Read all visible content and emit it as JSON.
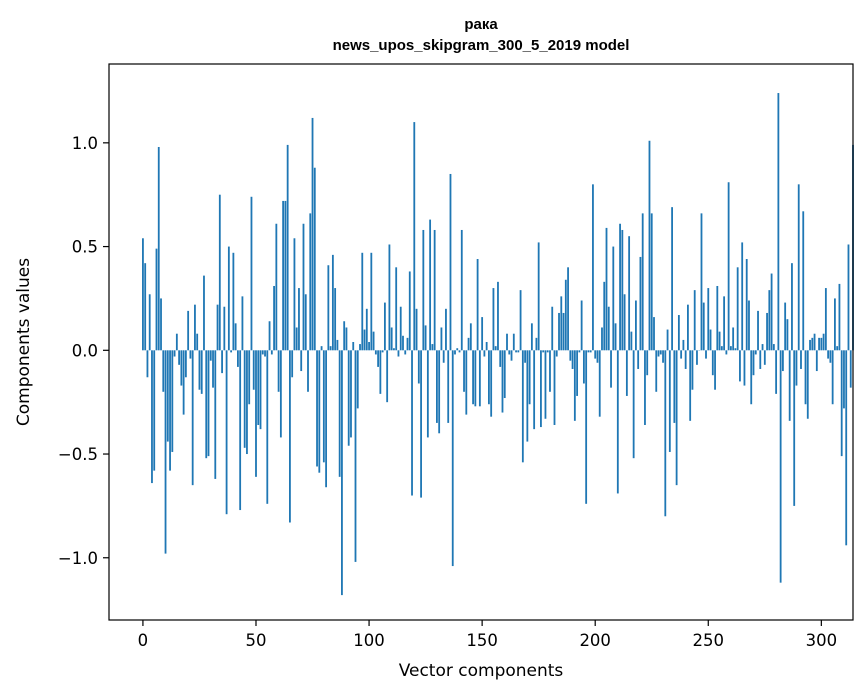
{
  "chart_data": {
    "type": "bar",
    "title": "рака",
    "subtitle": "news_upos_skipgram_300_5_2019 model",
    "xlabel": "Vector components",
    "ylabel": "Components values",
    "xlim": [
      -15,
      314
    ],
    "ylim": [
      -1.3,
      1.38
    ],
    "xticks": [
      0,
      50,
      100,
      150,
      200,
      250,
      300
    ],
    "xtick_labels": [
      "0",
      "50",
      "100",
      "150",
      "200",
      "250",
      "300"
    ],
    "yticks": [
      -1.0,
      -0.5,
      0.0,
      0.5,
      1.0
    ],
    "ytick_labels": [
      "−1.0",
      "−0.5",
      "0.0",
      "0.5",
      "1.0"
    ],
    "grid": false,
    "bar_color": "#1f77b4",
    "values": [
      0.54,
      0.42,
      -0.13,
      0.27,
      -0.64,
      -0.58,
      0.49,
      0.98,
      0.25,
      -0.2,
      -0.98,
      -0.44,
      -0.58,
      -0.49,
      -0.03,
      0.08,
      -0.07,
      -0.17,
      -0.31,
      -0.13,
      0.19,
      -0.04,
      -0.65,
      0.22,
      0.08,
      -0.19,
      -0.21,
      0.36,
      -0.52,
      -0.51,
      -0.05,
      -0.18,
      -0.62,
      0.22,
      0.75,
      -0.11,
      0.21,
      -0.79,
      0.5,
      -0.01,
      0.47,
      0.13,
      -0.08,
      -0.77,
      0.26,
      -0.47,
      -0.5,
      -0.26,
      0.74,
      -0.19,
      -0.61,
      -0.36,
      -0.38,
      -0.02,
      -0.03,
      -0.74,
      0.14,
      -0.02,
      0.31,
      0.61,
      -0.2,
      -0.42,
      0.72,
      0.72,
      0.99,
      -0.83,
      -0.13,
      0.54,
      0.11,
      0.3,
      -0.1,
      0.61,
      0.27,
      -0.2,
      0.66,
      1.12,
      0.88,
      -0.56,
      -0.59,
      0.02,
      -0.54,
      -0.66,
      0.41,
      0.02,
      0.46,
      0.3,
      0.05,
      -0.61,
      -1.18,
      0.14,
      0.11,
      -0.46,
      -0.42,
      0.04,
      -1.02,
      -0.28,
      0.03,
      0.47,
      0.1,
      0.2,
      0.04,
      0.47,
      0.09,
      -0.02,
      -0.08,
      -0.21,
      -0.01,
      0.23,
      -0.25,
      0.51,
      0.11,
      0.01,
      0.4,
      -0.03,
      0.21,
      0.07,
      -0.02,
      0.06,
      0.38,
      -0.7,
      1.1,
      0.2,
      -0.16,
      -0.71,
      0.58,
      0.12,
      -0.42,
      0.63,
      0.03,
      0.58,
      -0.35,
      -0.4,
      0.11,
      -0.06,
      0.2,
      -0.35,
      0.85,
      -1.04,
      -0.02,
      0.01,
      -0.01,
      0.58,
      -0.2,
      -0.31,
      0.06,
      0.13,
      -0.26,
      -0.27,
      0.44,
      -0.27,
      0.16,
      -0.03,
      0.04,
      -0.26,
      -0.32,
      0.3,
      0.02,
      0.33,
      -0.08,
      -0.3,
      -0.23,
      0.08,
      -0.02,
      -0.05,
      0.08,
      -0.01,
      -0.01,
      0.29,
      -0.54,
      -0.06,
      -0.44,
      -0.26,
      0.13,
      -0.38,
      0.06,
      0.52,
      -0.37,
      -0.01,
      -0.33,
      -0.01,
      -0.2,
      0.21,
      -0.36,
      -0.03,
      0.18,
      0.26,
      0.18,
      0.34,
      0.4,
      -0.05,
      -0.09,
      -0.34,
      -0.22,
      -0.01,
      0.24,
      -0.16,
      -0.74,
      -0.01,
      -0.01,
      0.8,
      -0.04,
      -0.06,
      -0.32,
      0.11,
      0.33,
      0.59,
      0.21,
      -0.18,
      0.5,
      0.13,
      -0.69,
      0.61,
      0.58,
      0.27,
      -0.22,
      0.55,
      0.09,
      -0.52,
      0.24,
      -0.09,
      0.45,
      0.66,
      -0.36,
      -0.12,
      1.01,
      0.66,
      0.16,
      -0.2,
      -0.03,
      -0.02,
      -0.06,
      -0.8,
      0.1,
      -0.49,
      0.69,
      -0.35,
      -0.65,
      0.17,
      -0.04,
      0.05,
      -0.09,
      0.22,
      -0.34,
      -0.19,
      0.29,
      -0.07,
      0.0,
      0.66,
      0.23,
      -0.04,
      0.3,
      0.1,
      -0.12,
      -0.19,
      0.31,
      0.09,
      0.02,
      0.26,
      -0.02,
      0.81,
      0.02,
      0.11,
      0.01,
      0.4,
      -0.15,
      0.52,
      -0.17,
      0.44,
      0.24,
      -0.26,
      -0.12,
      -0.02,
      0.19,
      -0.09,
      0.03,
      -0.07,
      0.18,
      0.29,
      0.37,
      0.03,
      -0.21,
      1.24,
      -1.12,
      -0.1,
      0.23,
      0.15,
      -0.34,
      0.42,
      -0.75,
      -0.17,
      0.8,
      -0.09,
      0.67,
      -0.26,
      -0.33,
      0.05,
      0.06,
      0.08,
      -0.1,
      0.06,
      0.06,
      0.08,
      0.3,
      -0.04,
      -0.06,
      -0.26,
      0.25,
      0.02,
      0.32,
      -0.51,
      -0.28,
      -0.94,
      0.51,
      -0.18,
      0.99
    ]
  }
}
